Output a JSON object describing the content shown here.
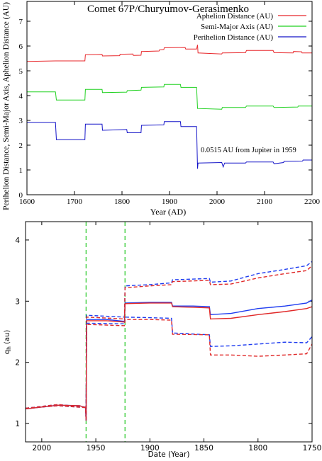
{
  "chart_data": [
    {
      "type": "line",
      "title": "Comet 67P/Churyumov-Gerasimenko",
      "xlabel": "Year (AD)",
      "ylabel": "Perihelion Distance, Semi-Major Axis, Aphelion Distance (AU)",
      "xlim": [
        1600,
        2200
      ],
      "ylim": [
        0,
        7.8
      ],
      "xticks": [
        "1600",
        "1700",
        "1800",
        "1900",
        "2000",
        "2100",
        "2200"
      ],
      "yticks": [
        "0",
        "1",
        "2",
        "3",
        "4",
        "5",
        "6",
        "7"
      ],
      "legend_position": "top-right",
      "annotation": "0.0515 AU from Jupiter in 1959",
      "series": [
        {
          "name": "Aphelion Distance (AU)",
          "color": "#e8262a",
          "points": [
            [
              1600,
              5.38
            ],
            [
              1660,
              5.4
            ],
            [
              1722,
              5.4
            ],
            [
              1723,
              5.65
            ],
            [
              1758,
              5.66
            ],
            [
              1759,
              5.6
            ],
            [
              1795,
              5.61
            ],
            [
              1796,
              5.67
            ],
            [
              1823,
              5.68
            ],
            [
              1824,
              5.62
            ],
            [
              1840,
              5.63
            ],
            [
              1841,
              5.78
            ],
            [
              1878,
              5.8
            ],
            [
              1879,
              5.85
            ],
            [
              1888,
              5.86
            ],
            [
              1889,
              5.93
            ],
            [
              1933,
              5.94
            ],
            [
              1934,
              5.88
            ],
            [
              1957,
              5.88
            ],
            [
              1959,
              6.05
            ],
            [
              1960,
              5.72
            ],
            [
              2010,
              5.68
            ],
            [
              2011,
              5.72
            ],
            [
              2060,
              5.73
            ],
            [
              2062,
              5.82
            ],
            [
              2118,
              5.82
            ],
            [
              2120,
              5.73
            ],
            [
              2160,
              5.72
            ],
            [
              2161,
              5.78
            ],
            [
              2178,
              5.77
            ],
            [
              2179,
              5.72
            ],
            [
              2200,
              5.72
            ]
          ]
        },
        {
          "name": "Semi-Major Axis (AU)",
          "color": "#1fd11f",
          "points": [
            [
              1600,
              4.15
            ],
            [
              1660,
              4.15
            ],
            [
              1662,
              3.82
            ],
            [
              1722,
              3.82
            ],
            [
              1723,
              4.25
            ],
            [
              1758,
              4.25
            ],
            [
              1759,
              4.12
            ],
            [
              1810,
              4.14
            ],
            [
              1811,
              4.2
            ],
            [
              1840,
              4.22
            ],
            [
              1841,
              4.33
            ],
            [
              1888,
              4.35
            ],
            [
              1889,
              4.45
            ],
            [
              1923,
              4.45
            ],
            [
              1924,
              4.33
            ],
            [
              1957,
              4.33
            ],
            [
              1959,
              3.48
            ],
            [
              2010,
              3.45
            ],
            [
              2011,
              3.52
            ],
            [
              2060,
              3.52
            ],
            [
              2062,
              3.58
            ],
            [
              2118,
              3.58
            ],
            [
              2120,
              3.52
            ],
            [
              2170,
              3.54
            ],
            [
              2171,
              3.58
            ],
            [
              2200,
              3.58
            ]
          ]
        },
        {
          "name": "Perihelion Distance (AU)",
          "color": "#1414c8",
          "points": [
            [
              1600,
              2.92
            ],
            [
              1660,
              2.92
            ],
            [
              1662,
              2.22
            ],
            [
              1722,
              2.22
            ],
            [
              1723,
              2.85
            ],
            [
              1758,
              2.85
            ],
            [
              1759,
              2.6
            ],
            [
              1810,
              2.63
            ],
            [
              1811,
              2.5
            ],
            [
              1840,
              2.5
            ],
            [
              1841,
              2.8
            ],
            [
              1888,
              2.82
            ],
            [
              1889,
              2.95
            ],
            [
              1923,
              2.95
            ],
            [
              1924,
              2.75
            ],
            [
              1957,
              2.75
            ],
            [
              1959,
              1.05
            ],
            [
              1960,
              1.28
            ],
            [
              2010,
              1.3
            ],
            [
              2013,
              1.12
            ],
            [
              2016,
              1.28
            ],
            [
              2060,
              1.28
            ],
            [
              2062,
              1.32
            ],
            [
              2118,
              1.32
            ],
            [
              2120,
              1.25
            ],
            [
              2140,
              1.3
            ],
            [
              2141,
              1.35
            ],
            [
              2180,
              1.36
            ],
            [
              2181,
              1.4
            ],
            [
              2200,
              1.4
            ]
          ]
        }
      ]
    },
    {
      "type": "line",
      "xlabel": "Date (Year)",
      "ylabel": "q_h (au)",
      "xlim": [
        2015,
        1750
      ],
      "ylim": [
        0.7,
        4.3
      ],
      "xticks": [
        "2000",
        "1950",
        "1900",
        "1850",
        "1800",
        "1750"
      ],
      "yticks": [
        "1",
        "2",
        "3",
        "4"
      ],
      "vlines": [
        1959,
        1923
      ],
      "vline_color": "#33cc33",
      "series": [
        {
          "color": "#1e3cf0",
          "dashed": false,
          "points": [
            [
              2015,
              1.24
            ],
            [
              2000,
              1.27
            ],
            [
              1985,
              1.3
            ],
            [
              1965,
              1.29
            ],
            [
              1959.5,
              1.26
            ],
            [
              1959,
              1.05
            ],
            [
              1958.5,
              2.7
            ],
            [
              1940,
              2.7
            ],
            [
              1923.5,
              2.67
            ],
            [
              1923,
              2.97
            ],
            [
              1900,
              2.98
            ],
            [
              1880,
              2.98
            ],
            [
              1879,
              2.92
            ],
            [
              1860,
              2.92
            ],
            [
              1845,
              2.91
            ],
            [
              1844,
              2.78
            ],
            [
              1825,
              2.8
            ],
            [
              1800,
              2.88
            ],
            [
              1775,
              2.92
            ],
            [
              1755,
              2.97
            ],
            [
              1750,
              3.02
            ]
          ]
        },
        {
          "color": "#e02828",
          "dashed": false,
          "points": [
            [
              2015,
              1.24
            ],
            [
              2000,
              1.27
            ],
            [
              1985,
              1.3
            ],
            [
              1965,
              1.29
            ],
            [
              1959.5,
              1.26
            ],
            [
              1959,
              1.05
            ],
            [
              1958.5,
              2.68
            ],
            [
              1940,
              2.68
            ],
            [
              1923.5,
              2.66
            ],
            [
              1923,
              2.96
            ],
            [
              1900,
              2.97
            ],
            [
              1880,
              2.97
            ],
            [
              1879,
              2.91
            ],
            [
              1860,
              2.9
            ],
            [
              1845,
              2.89
            ],
            [
              1844,
              2.71
            ],
            [
              1825,
              2.72
            ],
            [
              1800,
              2.78
            ],
            [
              1775,
              2.83
            ],
            [
              1755,
              2.88
            ],
            [
              1750,
              2.91
            ]
          ]
        },
        {
          "color": "#1e3cf0",
          "dashed": true,
          "points": [
            [
              2015,
              1.25
            ],
            [
              1985,
              1.31
            ],
            [
              1959.5,
              1.27
            ],
            [
              1959,
              1.05
            ],
            [
              1958.5,
              2.77
            ],
            [
              1923.5,
              2.74
            ],
            [
              1923,
              3.25
            ],
            [
              1900,
              3.27
            ],
            [
              1880,
              3.3
            ],
            [
              1879,
              3.35
            ],
            [
              1845,
              3.37
            ],
            [
              1844,
              3.31
            ],
            [
              1825,
              3.33
            ],
            [
              1800,
              3.45
            ],
            [
              1775,
              3.52
            ],
            [
              1755,
              3.58
            ],
            [
              1750,
              3.65
            ]
          ]
        },
        {
          "color": "#e02828",
          "dashed": true,
          "points": [
            [
              2015,
              1.25
            ],
            [
              1985,
              1.31
            ],
            [
              1959.5,
              1.27
            ],
            [
              1959,
              1.05
            ],
            [
              1958.5,
              2.74
            ],
            [
              1923.5,
              2.71
            ],
            [
              1923,
              3.22
            ],
            [
              1900,
              3.25
            ],
            [
              1880,
              3.27
            ],
            [
              1879,
              3.32
            ],
            [
              1845,
              3.34
            ],
            [
              1844,
              3.27
            ],
            [
              1825,
              3.28
            ],
            [
              1800,
              3.38
            ],
            [
              1775,
              3.45
            ],
            [
              1755,
              3.5
            ],
            [
              1750,
              3.58
            ]
          ]
        },
        {
          "color": "#1e3cf0",
          "dashed": true,
          "points": [
            [
              2015,
              1.25
            ],
            [
              1985,
              1.29
            ],
            [
              1959.5,
              1.26
            ],
            [
              1959,
              1.05
            ],
            [
              1958.5,
              2.64
            ],
            [
              1923.5,
              2.63
            ],
            [
              1923,
              2.74
            ],
            [
              1900,
              2.73
            ],
            [
              1880,
              2.72
            ],
            [
              1879,
              2.48
            ],
            [
              1845,
              2.45
            ],
            [
              1844,
              2.26
            ],
            [
              1825,
              2.27
            ],
            [
              1800,
              2.3
            ],
            [
              1775,
              2.33
            ],
            [
              1755,
              2.32
            ],
            [
              1750,
              2.42
            ]
          ]
        },
        {
          "color": "#e02828",
          "dashed": true,
          "points": [
            [
              2015,
              1.25
            ],
            [
              1985,
              1.29
            ],
            [
              1959.5,
              1.26
            ],
            [
              1959,
              1.05
            ],
            [
              1958.5,
              2.62
            ],
            [
              1923.5,
              2.6
            ],
            [
              1923,
              2.7
            ],
            [
              1900,
              2.7
            ],
            [
              1880,
              2.69
            ],
            [
              1879,
              2.46
            ],
            [
              1845,
              2.45
            ],
            [
              1844,
              2.12
            ],
            [
              1825,
              2.12
            ],
            [
              1800,
              2.1
            ],
            [
              1775,
              2.12
            ],
            [
              1755,
              2.14
            ],
            [
              1750,
              2.3
            ]
          ]
        }
      ]
    }
  ]
}
